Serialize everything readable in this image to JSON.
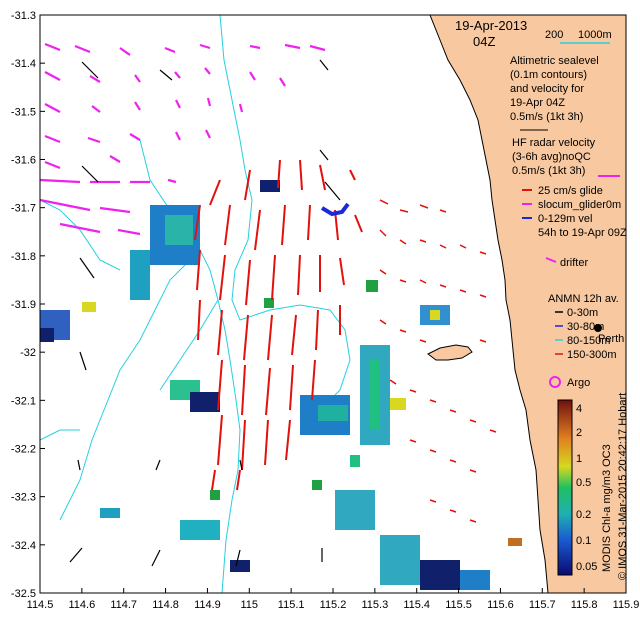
{
  "header": {
    "date": "19-Apr-2013",
    "time": "04Z",
    "scale_left": "200",
    "scale_right": "1000m"
  },
  "legend": {
    "altimetry": [
      "Altimetric sealevel",
      "(0.1m contours)",
      "and velocity for",
      "19-Apr 04Z",
      "0.5m/s (1kt 3h)"
    ],
    "hf_radar": [
      "HF radar velocity",
      "(3-6h avg)noQC",
      "0.5m/s (1kt 3h)"
    ],
    "glider": [
      "25 cm/s glide",
      "slocum_glider0m",
      "0-129m vel",
      "54h to 19-Apr 09Z"
    ],
    "drifter": "drifter",
    "anmn_title": "ANMN 12h av.",
    "anmn_items": [
      "0-30m",
      "30-80m",
      "80-150m",
      "150-300m"
    ],
    "perth": "Perth",
    "argo": "Argo"
  },
  "colorbar": {
    "label": "MODIS Chl-a mg/m3 OC3",
    "ticks": [
      "4",
      "2",
      "1",
      "0.5",
      "0.2",
      "0.1",
      "0.05"
    ]
  },
  "credit": "© IMOS 31-Mar-2015 20:42:17 Hobart",
  "axes": {
    "x_ticks": [
      "114.5",
      "114.6",
      "114.7",
      "114.8",
      "114.9",
      "115",
      "115.1",
      "115.2",
      "115.3",
      "115.4",
      "115.5",
      "115.6",
      "115.7",
      "115.8",
      "115.9"
    ],
    "y_ticks": [
      "-31.3",
      "-31.4",
      "-31.5",
      "-31.6",
      "-31.7",
      "-31.8",
      "-31.9",
      "-32",
      "-32.1",
      "-32.2",
      "-32.3",
      "-32.4",
      "-32.5"
    ],
    "x_range": [
      114.5,
      115.9
    ],
    "y_range": [
      -32.5,
      -31.3
    ]
  },
  "colors": {
    "land": "#f8c9a0",
    "hf_radar": "#e2110d",
    "altimetry": "#ee22ee",
    "contour": "#26d0e0",
    "glider": "#1a2bd6"
  }
}
